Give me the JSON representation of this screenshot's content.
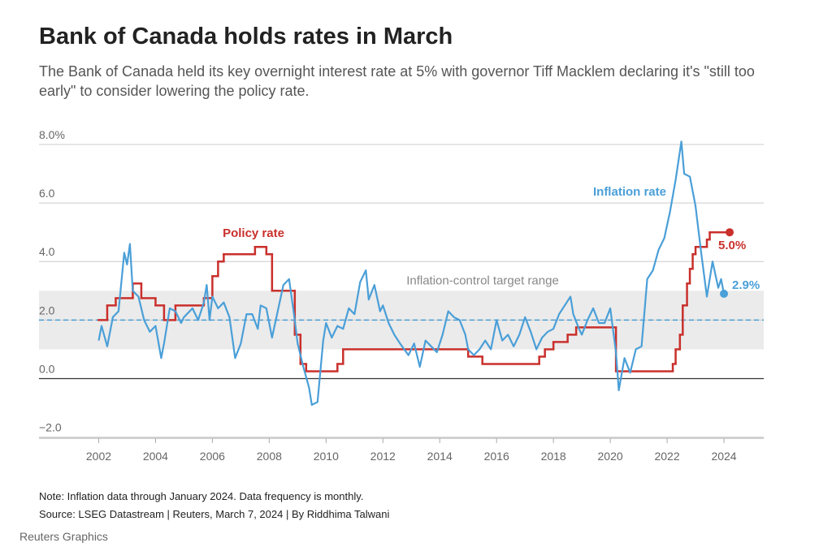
{
  "chart_data": {
    "type": "line",
    "title": "Bank of Canada holds rates in March",
    "subtitle": "The Bank of Canada held its key overnight interest rate at 5% with governor Tiff Macklem declaring it's \"still too early\" to consider lowering the policy rate.",
    "note": "Note: Inflation data through January 2024. Data frequency is monthly.",
    "source": "Source: LSEG Datastream | Reuters, March 7, 2024 | By Riddhima Talwani",
    "credit": "Reuters Graphics",
    "band_label": "Inflation-control target range",
    "band": [
      1,
      3
    ],
    "target": 2,
    "xlim": [
      1999.9,
      2025.4
    ],
    "xticks": [
      2002,
      2004,
      2006,
      2008,
      2010,
      2012,
      2014,
      2016,
      2018,
      2020,
      2022,
      2024
    ],
    "ylim": [
      -2.4,
      8.5
    ],
    "yticks": [
      {
        "value": -2,
        "label": "−2.0"
      },
      {
        "value": 0,
        "label": "0.0"
      },
      {
        "value": 2,
        "label": "2.0"
      },
      {
        "value": 4,
        "label": "4.0"
      },
      {
        "value": 6,
        "label": "6.0"
      },
      {
        "value": 8,
        "label": "8.0%"
      }
    ],
    "grid": true,
    "series": [
      {
        "name": "Policy rate",
        "color": "#c9302c",
        "step": true,
        "x": [
          2002.0,
          2002.3,
          2002.6,
          2003.2,
          2003.5,
          2004.0,
          2004.3,
          2004.7,
          2005.7,
          2006.0,
          2006.2,
          2006.4,
          2007.5,
          2007.9,
          2008.1,
          2008.9,
          2009.1,
          2009.3,
          2010.4,
          2010.6,
          2015.0,
          2015.5,
          2017.5,
          2017.7,
          2018.0,
          2018.5,
          2018.8,
          2020.2,
          2022.2,
          2022.3,
          2022.45,
          2022.55,
          2022.7,
          2022.8,
          2022.9,
          2023.0,
          2023.4,
          2023.5,
          2024.2
        ],
        "values": [
          2.0,
          2.5,
          2.75,
          3.25,
          2.75,
          2.5,
          2.0,
          2.5,
          2.75,
          3.5,
          4.0,
          4.25,
          4.5,
          4.25,
          3.0,
          1.5,
          0.5,
          0.25,
          0.5,
          1.0,
          0.75,
          0.5,
          0.75,
          1.0,
          1.25,
          1.5,
          1.75,
          0.25,
          0.5,
          1.0,
          1.5,
          2.5,
          3.25,
          3.75,
          4.25,
          4.5,
          4.75,
          5.0,
          5.0
        ],
        "end_label": "5.0%"
      },
      {
        "name": "Inflation rate",
        "color": "#4a9fd8",
        "x": [
          2002.0,
          2002.1,
          2002.3,
          2002.5,
          2002.7,
          2002.9,
          2003.0,
          2003.1,
          2003.2,
          2003.4,
          2003.6,
          2003.8,
          2004.0,
          2004.2,
          2004.3,
          2004.5,
          2004.7,
          2004.9,
          2005.0,
          2005.3,
          2005.5,
          2005.7,
          2005.8,
          2005.9,
          2006.0,
          2006.2,
          2006.4,
          2006.6,
          2006.8,
          2007.0,
          2007.2,
          2007.4,
          2007.6,
          2007.7,
          2007.9,
          2008.1,
          2008.3,
          2008.5,
          2008.7,
          2008.9,
          2009.0,
          2009.2,
          2009.4,
          2009.5,
          2009.7,
          2009.9,
          2010.0,
          2010.2,
          2010.4,
          2010.6,
          2010.8,
          2011.0,
          2011.2,
          2011.4,
          2011.5,
          2011.7,
          2011.9,
          2012.0,
          2012.2,
          2012.4,
          2012.6,
          2012.9,
          2013.1,
          2013.3,
          2013.5,
          2013.7,
          2013.9,
          2014.1,
          2014.3,
          2014.5,
          2014.7,
          2014.9,
          2015.0,
          2015.2,
          2015.4,
          2015.6,
          2015.8,
          2016.0,
          2016.2,
          2016.4,
          2016.6,
          2016.8,
          2017.0,
          2017.2,
          2017.4,
          2017.6,
          2017.8,
          2018.0,
          2018.2,
          2018.4,
          2018.6,
          2018.7,
          2018.9,
          2019.0,
          2019.2,
          2019.4,
          2019.6,
          2019.8,
          2020.0,
          2020.2,
          2020.3,
          2020.5,
          2020.7,
          2020.9,
          2021.1,
          2021.3,
          2021.5,
          2021.7,
          2021.9,
          2022.1,
          2022.3,
          2022.5,
          2022.6,
          2022.8,
          2023.0,
          2023.2,
          2023.4,
          2023.6,
          2023.8,
          2023.9,
          2024.0
        ],
        "values": [
          1.3,
          1.8,
          1.1,
          2.1,
          2.3,
          4.3,
          3.9,
          4.6,
          3.0,
          2.8,
          2.0,
          1.6,
          1.8,
          0.7,
          1.2,
          2.4,
          2.3,
          1.9,
          2.1,
          2.4,
          2.0,
          2.6,
          3.2,
          2.0,
          2.8,
          2.4,
          2.6,
          2.1,
          0.7,
          1.2,
          2.2,
          2.2,
          1.7,
          2.5,
          2.4,
          1.4,
          2.3,
          3.2,
          3.4,
          2.0,
          1.2,
          0.4,
          -0.3,
          -0.9,
          -0.8,
          1.3,
          1.9,
          1.4,
          1.8,
          1.7,
          2.4,
          2.2,
          3.3,
          3.7,
          2.7,
          3.2,
          2.3,
          2.5,
          1.9,
          1.5,
          1.2,
          0.8,
          1.2,
          0.4,
          1.3,
          1.1,
          0.9,
          1.5,
          2.3,
          2.1,
          2.0,
          1.5,
          1.0,
          0.8,
          1.0,
          1.3,
          1.0,
          2.0,
          1.3,
          1.5,
          1.1,
          1.5,
          2.1,
          1.6,
          1.0,
          1.4,
          1.6,
          1.7,
          2.2,
          2.5,
          2.8,
          2.2,
          1.7,
          1.5,
          2.0,
          2.4,
          1.9,
          1.9,
          2.4,
          0.9,
          -0.4,
          0.7,
          0.2,
          1.0,
          1.1,
          3.4,
          3.7,
          4.4,
          4.8,
          5.7,
          6.8,
          8.1,
          7.0,
          6.9,
          5.9,
          4.3,
          2.8,
          4.0,
          3.1,
          3.4,
          2.9
        ],
        "end_label": "2.9%"
      }
    ]
  }
}
